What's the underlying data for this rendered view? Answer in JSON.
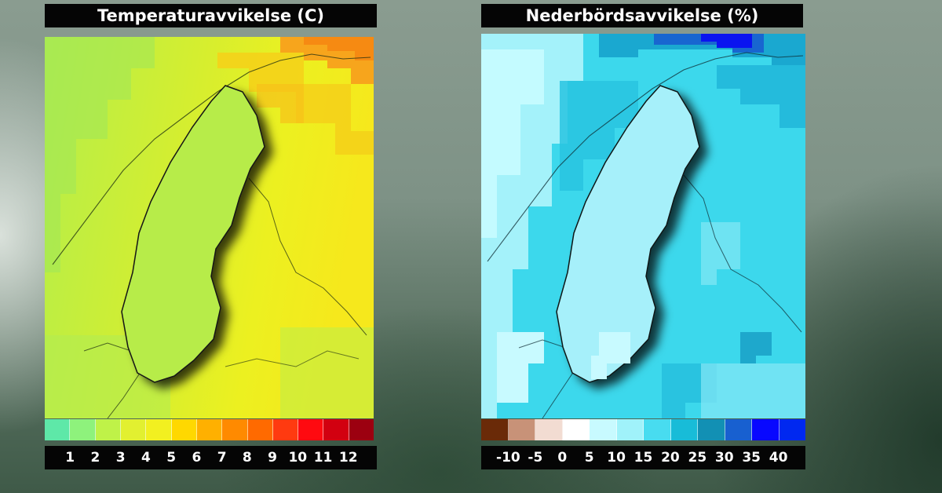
{
  "panels": [
    {
      "title": "Temperaturavvikelse (C)",
      "base_color": "#d8ea36",
      "legend": {
        "colors": [
          "#5ee8a8",
          "#8ef27c",
          "#bff248",
          "#e2f030",
          "#f2f020",
          "#ffd800",
          "#ffb000",
          "#ff8a00",
          "#ff6a00",
          "#ff3a10",
          "#ff0a10",
          "#d20010",
          "#9c0010"
        ],
        "labels": [
          "1",
          "2",
          "3",
          "4",
          "5",
          "6",
          "7",
          "8",
          "9",
          "10",
          "11",
          "12"
        ]
      }
    },
    {
      "title": "Nederbördsavvikelse (%)",
      "base_color": "#3cd8ec",
      "legend": {
        "colors": [
          "#6a2a08",
          "#c89278",
          "#f2dcd2",
          "#ffffff",
          "#c8faff",
          "#a0f2fa",
          "#48dcf0",
          "#18bcd8",
          "#1290b4",
          "#1860d0",
          "#0808ff",
          "#0028f0"
        ],
        "labels": [
          "-10",
          "-5",
          "0",
          "5",
          "10",
          "15",
          "20",
          "25",
          "30",
          "35",
          "40"
        ]
      }
    }
  ]
}
